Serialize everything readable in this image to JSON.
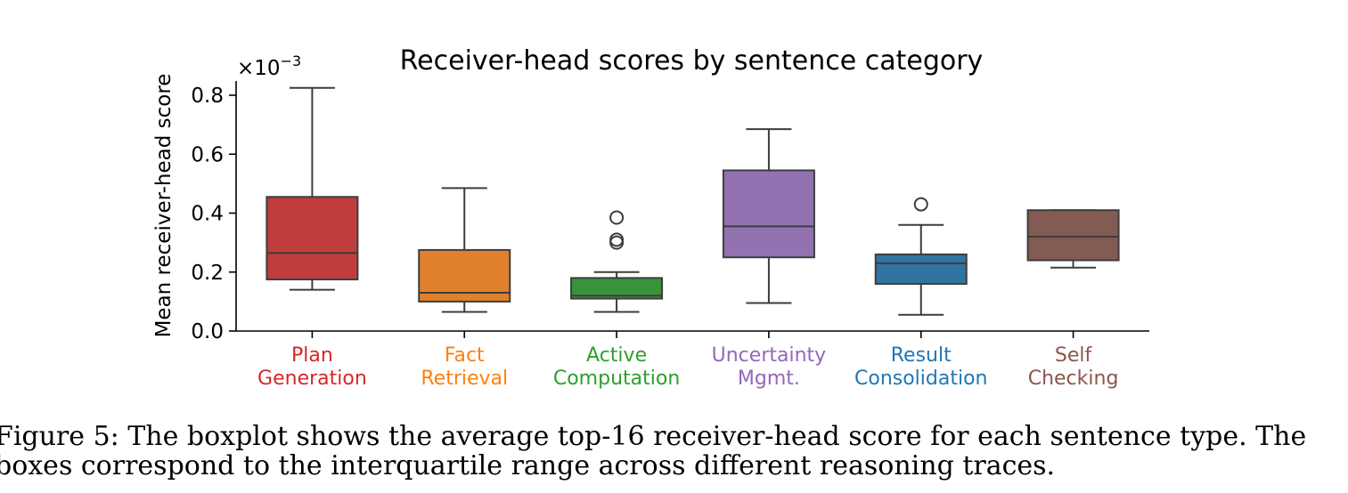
{
  "chart_data": {
    "type": "box",
    "title": "Receiver-head scores by sentence category",
    "xlabel": "",
    "ylabel": "Mean receiver-head score",
    "scale_label": "×10",
    "scale_exponent": "−3",
    "ylim": [
      0.0,
      0.85
    ],
    "yticks": [
      "0.0",
      "0.2",
      "0.4",
      "0.6",
      "0.8"
    ],
    "ytick_values": [
      0.0,
      0.2,
      0.4,
      0.6,
      0.8
    ],
    "categories": [
      {
        "lines": [
          "Plan",
          "Generation"
        ],
        "color": "#c03d3e",
        "label_color": "#d62728",
        "whisker_low": 0.14,
        "q1": 0.175,
        "median": 0.265,
        "q3": 0.455,
        "whisker_high": 0.825,
        "outliers": []
      },
      {
        "lines": [
          "Fact",
          "Retrieval"
        ],
        "color": "#e1812c",
        "label_color": "#ff7f0e",
        "whisker_low": 0.065,
        "q1": 0.1,
        "median": 0.13,
        "q3": 0.275,
        "whisker_high": 0.485,
        "outliers": []
      },
      {
        "lines": [
          "Active",
          "Computation"
        ],
        "color": "#3a923a",
        "label_color": "#2ca02c",
        "whisker_low": 0.065,
        "q1": 0.11,
        "median": 0.12,
        "q3": 0.18,
        "whisker_high": 0.2,
        "outliers": [
          0.3,
          0.31,
          0.385
        ]
      },
      {
        "lines": [
          "Uncertainty",
          "Mgmt."
        ],
        "color": "#9372b2",
        "label_color": "#9467bd",
        "whisker_low": 0.095,
        "q1": 0.25,
        "median": 0.355,
        "q3": 0.545,
        "whisker_high": 0.685,
        "outliers": []
      },
      {
        "lines": [
          "Result",
          "Consolidation"
        ],
        "color": "#3274a1",
        "label_color": "#1f77b4",
        "whisker_low": 0.055,
        "q1": 0.16,
        "median": 0.23,
        "q3": 0.26,
        "whisker_high": 0.36,
        "outliers": [
          0.43
        ]
      },
      {
        "lines": [
          "Self",
          "Checking"
        ],
        "color": "#845b53",
        "label_color": "#8c564b",
        "whisker_low": 0.215,
        "q1": 0.24,
        "median": 0.32,
        "q3": 0.41,
        "whisker_high": 0.41,
        "outliers": []
      }
    ]
  },
  "caption": {
    "line1": "Figure 5: The boxplot shows the average top-16 receiver-head score for each sentence type. The",
    "line2": "boxes correspond to the interquartile range across different reasoning traces."
  }
}
